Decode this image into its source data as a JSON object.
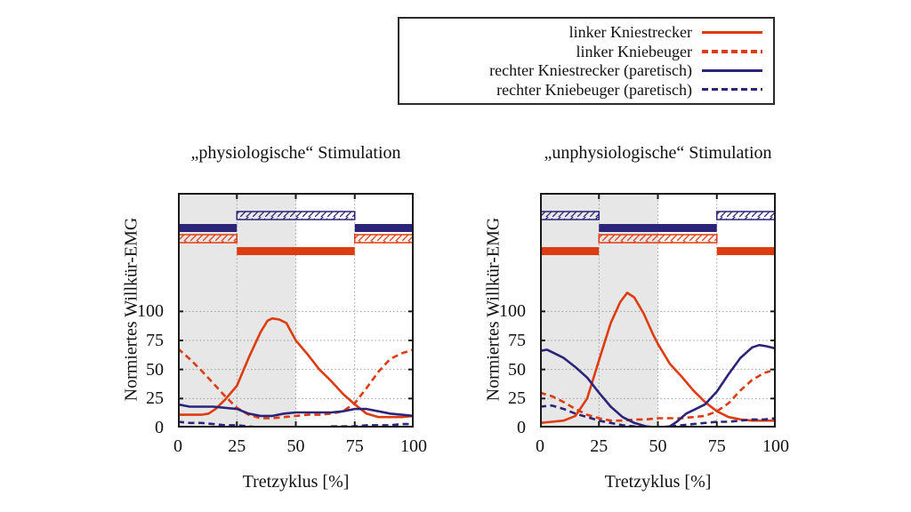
{
  "colors": {
    "red": "#dd3c10",
    "blue": "#2b2478",
    "shade": "#e7e7e7",
    "grid": "#9a9a9a",
    "axis": "#1a1a1a",
    "background": "#ffffff"
  },
  "legend": {
    "items": [
      {
        "label": "linker Kniestrecker",
        "color": "#dd3c10",
        "style": "solid"
      },
      {
        "label": "linker Kniebeuger",
        "color": "#dd3c10",
        "style": "dashed"
      },
      {
        "label": "rechter Kniestrecker (paretisch)",
        "color": "#2b2478",
        "style": "solid"
      },
      {
        "label": "rechter Kniebeuger (paretisch)",
        "color": "#2b2478",
        "style": "dashed"
      }
    ]
  },
  "chart_data": [
    {
      "type": "line",
      "title": "„physiologische“  Stimulation",
      "xlabel": "Tretzyklus [%]",
      "ylabel": "Normiertes Willkür-EMG",
      "xticks": [
        0,
        25,
        50,
        75,
        100
      ],
      "yticks": [
        0,
        25,
        50,
        75,
        100
      ],
      "xlim": [
        0,
        100
      ],
      "ylim": [
        0,
        202
      ],
      "grid": "dotted",
      "shaded_region": [
        0,
        50
      ],
      "stim_bars": [
        {
          "style": "hatched-blue",
          "segments": [
            [
              25,
              75
            ]
          ]
        },
        {
          "style": "solid-blue",
          "segments": [
            [
              0,
              25
            ],
            [
              75,
              100
            ]
          ]
        },
        {
          "style": "hatched-orange",
          "segments": [
            [
              0,
              25
            ],
            [
              75,
              100
            ]
          ]
        },
        {
          "style": "solid-orange",
          "segments": [
            [
              25,
              75
            ]
          ]
        }
      ],
      "series": [
        {
          "name": "linker Kniestrecker",
          "style": "solid",
          "color": "#dd3c10",
          "x": [
            0,
            5,
            10,
            13,
            16,
            20,
            25,
            30,
            35,
            38,
            40,
            43,
            46,
            50,
            55,
            60,
            65,
            70,
            75,
            80,
            85,
            90,
            95,
            100
          ],
          "y": [
            11,
            11,
            11,
            12,
            16,
            24,
            36,
            60,
            82,
            92,
            94,
            93,
            90,
            75,
            63,
            50,
            40,
            29,
            20,
            12,
            9,
            9,
            9,
            10
          ]
        },
        {
          "name": "linker Kniebeuger",
          "style": "dashed",
          "color": "#dd3c10",
          "x": [
            0,
            5,
            10,
            15,
            20,
            25,
            30,
            35,
            40,
            45,
            50,
            55,
            60,
            65,
            70,
            75,
            80,
            85,
            90,
            95,
            100
          ],
          "y": [
            68,
            59,
            49,
            38,
            27,
            17,
            11,
            8,
            8,
            9,
            10,
            11,
            11,
            12,
            14,
            21,
            34,
            48,
            59,
            64,
            67
          ]
        },
        {
          "name": "rechter Kniestrecker (paretisch)",
          "style": "solid",
          "color": "#2b2478",
          "x": [
            0,
            5,
            10,
            15,
            20,
            25,
            30,
            35,
            40,
            45,
            50,
            55,
            60,
            65,
            70,
            75,
            80,
            85,
            90,
            95,
            100
          ],
          "y": [
            20,
            18,
            18,
            18,
            17,
            16,
            12,
            10,
            10,
            12,
            13,
            13,
            13,
            13,
            14,
            16,
            16,
            14,
            12,
            11,
            10
          ]
        },
        {
          "name": "rechter Kniebeuger (paretisch)",
          "style": "dashed",
          "color": "#2b2478",
          "x": [
            0,
            5,
            10,
            15,
            20,
            25,
            30,
            35,
            40,
            45,
            50,
            55,
            60,
            65,
            70,
            75,
            80,
            85,
            90,
            95,
            100
          ],
          "y": [
            5,
            4,
            4,
            3,
            2,
            2,
            1,
            0,
            0,
            0,
            0,
            0,
            0,
            1,
            1,
            1,
            2,
            2,
            2,
            3,
            3
          ]
        }
      ]
    },
    {
      "type": "line",
      "title": "„unphysiologische“  Stimulation",
      "xlabel": "Tretzyklus [%]",
      "ylabel": "Normiertes Willkür-EMG",
      "xticks": [
        0,
        25,
        50,
        75,
        100
      ],
      "yticks": [
        0,
        25,
        50,
        75,
        100
      ],
      "xlim": [
        0,
        100
      ],
      "ylim": [
        0,
        202
      ],
      "grid": "dotted",
      "shaded_region": [
        0,
        50
      ],
      "stim_bars": [
        {
          "style": "hatched-blue",
          "segments": [
            [
              0,
              25
            ],
            [
              75,
              100
            ]
          ]
        },
        {
          "style": "solid-blue",
          "segments": [
            [
              25,
              75
            ]
          ]
        },
        {
          "style": "hatched-orange",
          "segments": [
            [
              25,
              75
            ]
          ]
        },
        {
          "style": "solid-orange",
          "segments": [
            [
              0,
              25
            ],
            [
              75,
              100
            ]
          ]
        }
      ],
      "series": [
        {
          "name": "linker Kniestrecker",
          "style": "solid",
          "color": "#dd3c10",
          "x": [
            0,
            5,
            10,
            15,
            20,
            25,
            30,
            34,
            37,
            40,
            44,
            48,
            50,
            55,
            60,
            65,
            70,
            75,
            80,
            85,
            90,
            95,
            100
          ],
          "y": [
            4,
            5,
            6,
            10,
            25,
            58,
            90,
            108,
            116,
            112,
            98,
            80,
            72,
            55,
            44,
            32,
            22,
            14,
            9,
            7,
            6,
            6,
            6
          ]
        },
        {
          "name": "linker Kniebeuger",
          "style": "dashed",
          "color": "#dd3c10",
          "x": [
            0,
            5,
            10,
            15,
            20,
            25,
            30,
            35,
            40,
            45,
            50,
            55,
            60,
            65,
            70,
            75,
            80,
            85,
            90,
            95,
            100
          ],
          "y": [
            30,
            27,
            22,
            16,
            11,
            8,
            6,
            6,
            7,
            7,
            8,
            8,
            8,
            9,
            10,
            14,
            21,
            32,
            41,
            47,
            50
          ]
        },
        {
          "name": "rechter Kniestrecker (paretisch)",
          "style": "solid",
          "color": "#2b2478",
          "x": [
            0,
            3,
            5,
            10,
            15,
            20,
            25,
            30,
            35,
            40,
            45,
            50,
            55,
            58,
            62,
            65,
            70,
            75,
            80,
            85,
            90,
            93,
            96,
            100
          ],
          "y": [
            66,
            67,
            65,
            60,
            52,
            43,
            30,
            18,
            9,
            4,
            1,
            0,
            1,
            5,
            12,
            15,
            20,
            31,
            46,
            60,
            69,
            71,
            70,
            68
          ]
        },
        {
          "name": "rechter Kniebeuger (paretisch)",
          "style": "dashed",
          "color": "#2b2478",
          "x": [
            0,
            5,
            10,
            15,
            20,
            25,
            30,
            35,
            40,
            45,
            50,
            55,
            60,
            65,
            70,
            75,
            80,
            85,
            90,
            95,
            100
          ],
          "y": [
            18,
            19,
            16,
            12,
            9,
            6,
            4,
            2,
            1,
            0,
            0,
            1,
            2,
            3,
            4,
            5,
            5,
            6,
            7,
            7,
            8
          ]
        }
      ]
    }
  ],
  "layout_note": ""
}
